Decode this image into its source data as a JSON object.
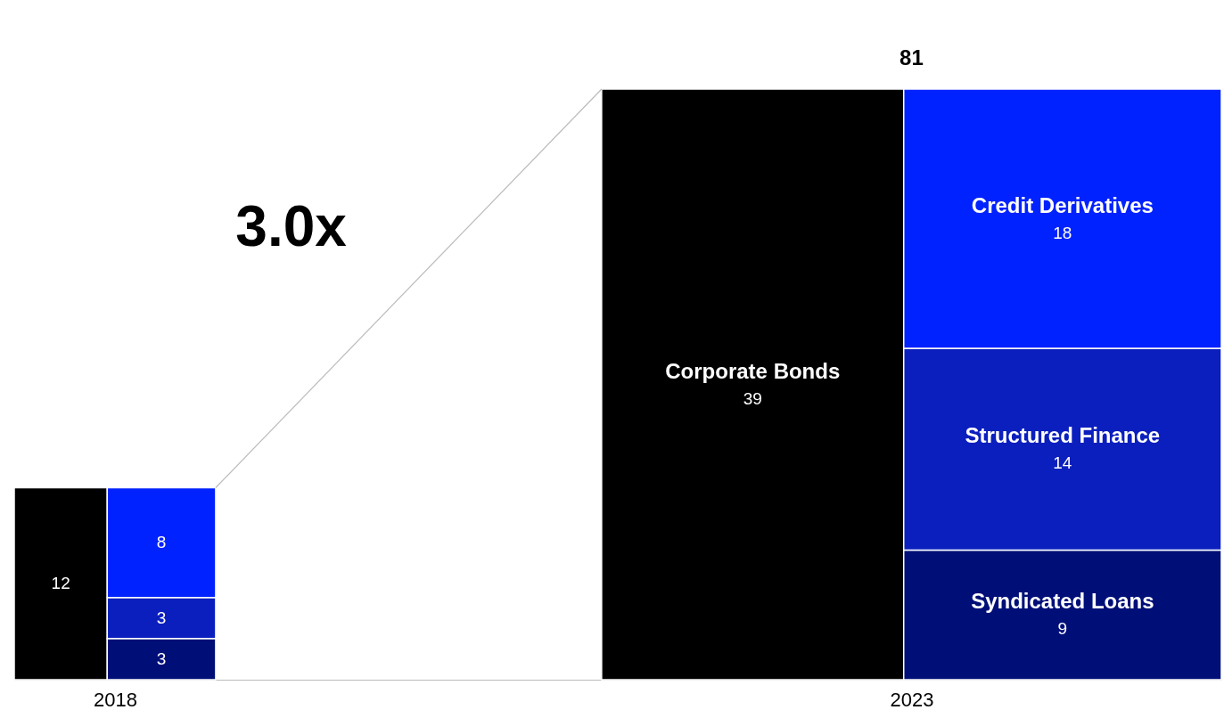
{
  "chart_data": {
    "type": "other",
    "categories": [
      "2018",
      "2023"
    ],
    "series": [
      {
        "name": "Corporate Bonds",
        "color": "#000000",
        "values": [
          12,
          39
        ]
      },
      {
        "name": "Syndicated Loans",
        "color": "#000f78",
        "values": [
          3,
          9
        ]
      },
      {
        "name": "Structured Finance",
        "color": "#0a1fbd",
        "values": [
          3,
          14
        ]
      },
      {
        "name": "Credit Derivatives",
        "color": "#0022ff",
        "values": [
          8,
          18
        ]
      }
    ],
    "data_labels": true,
    "totals": [
      null,
      "81"
    ],
    "annotations": [
      "3.0x"
    ]
  }
}
